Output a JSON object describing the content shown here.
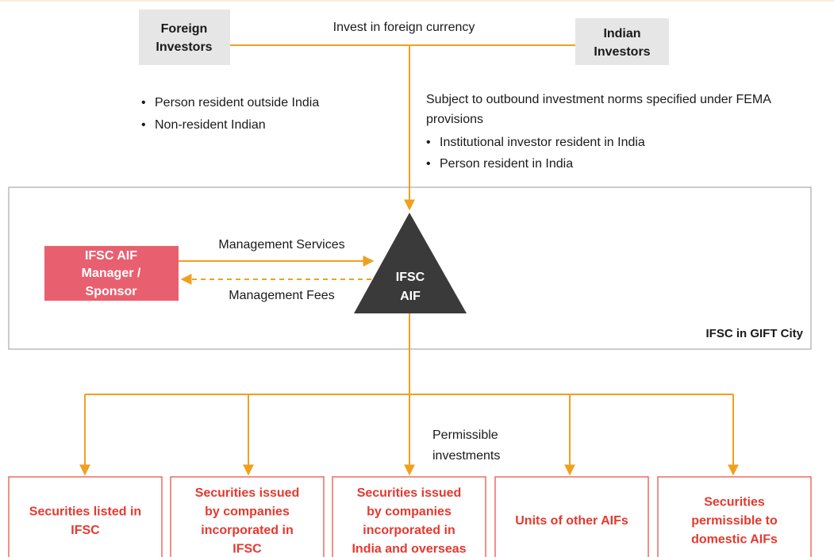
{
  "investors": {
    "foreign": [
      "Foreign",
      "Investors"
    ],
    "indian": [
      "Indian",
      "Investors"
    ],
    "flow_label": "Invest in foreign currency"
  },
  "foreign_notes": [
    "Person resident outside India",
    "Non-resident Indian"
  ],
  "indian_notes": {
    "text": [
      "Subject to outbound investment norms specified under FEMA",
      "provisions"
    ],
    "bullets": [
      "Institutional investor resident in India",
      "Person resident in India"
    ]
  },
  "zone_label": "IFSC in GIFT City",
  "aif": [
    "IFSC",
    "AIF"
  ],
  "manager": [
    "IFSC AIF",
    "Manager /",
    "Sponsor"
  ],
  "services_label": "Management Services",
  "fees_label": "Management Fees",
  "investments_label": [
    "Permissible",
    "investments"
  ],
  "targets": [
    [
      "Securities listed in",
      "IFSC"
    ],
    [
      "Securities issued",
      "by companies",
      "incorporated in",
      "IFSC"
    ],
    [
      "Securities issued",
      "by companies",
      "incorporated in",
      "India and overseas"
    ],
    [
      "Units of other AIFs"
    ],
    [
      "Securities",
      "permissible to",
      "domestic AIFs"
    ]
  ]
}
